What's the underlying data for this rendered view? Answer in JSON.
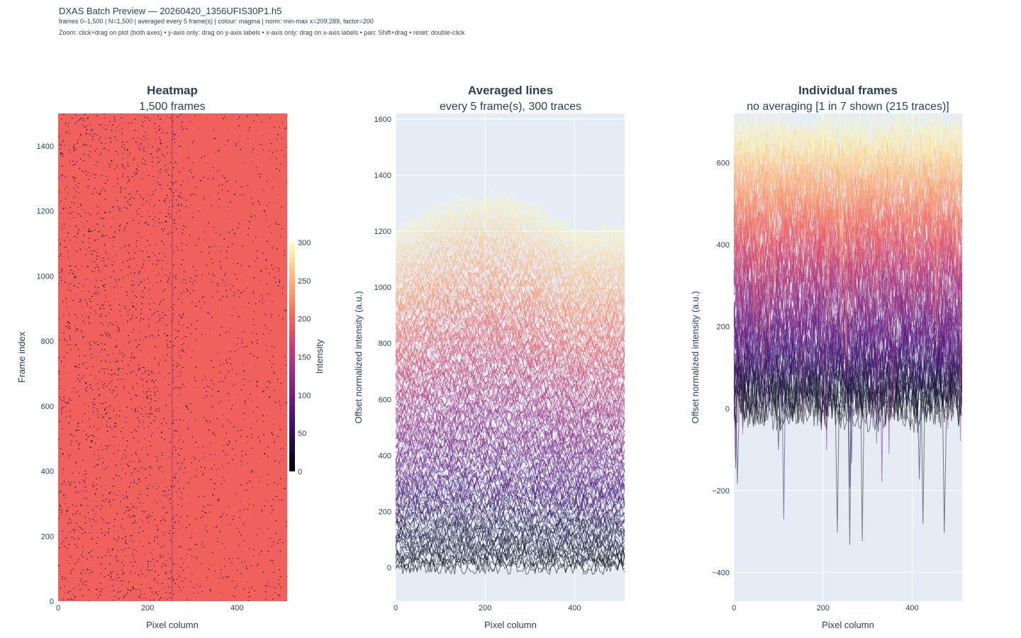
{
  "page": {
    "title": "DXAS Batch Preview — 20260420_1356UFIS30P1.h5",
    "meta": "frames 0–1,500  |  N=1,500  |  averaged every 5 frame(s)  |  colour: magma  |  norm: min-max x=209:289, factor=200",
    "help": "Zoom: click+drag on plot (both axes)  • y-axis only: drag on y-axis labels  • x-axis only: drag on x-axis labels  • pan: Shift+drag  •  reset: double-click"
  },
  "chart_data": [
    {
      "type": "heatmap",
      "title": "Heatmap",
      "subtitle": "1,500 frames",
      "xlabel": "Pixel column",
      "ylabel": "Frame index",
      "xlim": [
        0,
        512
      ],
      "ylim": [
        0,
        1500
      ],
      "xticks": [
        0,
        200,
        400
      ],
      "yticks": [
        0,
        200,
        400,
        600,
        800,
        1000,
        1200,
        1400
      ],
      "colorscale": "magma",
      "colorbar": {
        "title": "Intensity",
        "range": [
          0,
          300
        ],
        "ticks": [
          0,
          50,
          100,
          150,
          200,
          250,
          300
        ]
      },
      "dominant_value": 200,
      "dominant_color": "#f0605d"
    },
    {
      "type": "line",
      "title": "Averaged lines",
      "subtitle": "every 5 frame(s), 300 traces",
      "xlabel": "Pixel column",
      "ylabel": "Offset normalized intensity (a.u.)",
      "xlim": [
        0,
        512
      ],
      "ylim": [
        -120,
        1620
      ],
      "xticks": [
        0,
        200,
        400
      ],
      "yticks": [
        0,
        200,
        400,
        600,
        800,
        1000,
        1200,
        1400,
        1600
      ],
      "trace_count": 300,
      "colorscale": "magma",
      "offset_range": [
        0,
        1200
      ],
      "grid": true
    },
    {
      "type": "line",
      "title": "Individual frames",
      "subtitle": "no averaging  [1 in 7 shown (215 traces)]",
      "xlabel": "Pixel column",
      "ylabel": "Offset normalized intensity (a.u.)",
      "xlim": [
        0,
        512
      ],
      "ylim": [
        -470,
        720
      ],
      "xticks": [
        0,
        200,
        400
      ],
      "yticks": [
        -400,
        -200,
        0,
        200,
        400,
        600
      ],
      "trace_count": 215,
      "colorscale": "magma",
      "offset_range": [
        0,
        680
      ],
      "grid": true
    }
  ],
  "colors": {
    "plot_bg": "#e5ecf6",
    "axis_text": "#2a3f5f",
    "magma_stops": [
      "#000004",
      "#180f3d",
      "#440f76",
      "#721f81",
      "#9e2f7f",
      "#cd4071",
      "#f1605d",
      "#fd9668",
      "#feca8d",
      "#fcfdbf"
    ]
  }
}
